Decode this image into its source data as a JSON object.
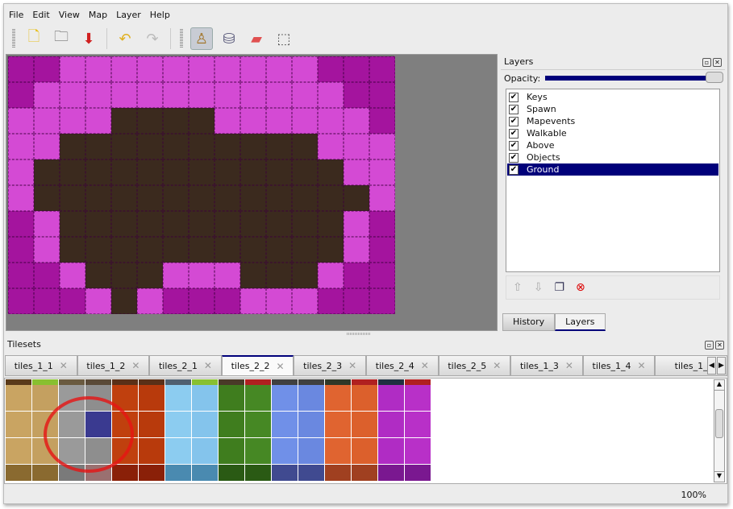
{
  "menu": [
    "File",
    "Edit",
    "View",
    "Map",
    "Layer",
    "Help"
  ],
  "toolbar": [
    {
      "icon": "new-file-icon",
      "glyph": "🗋"
    },
    {
      "icon": "open-folder-icon",
      "glyph": "🗀"
    },
    {
      "icon": "save-icon",
      "glyph": "⬇"
    },
    {
      "icon": "undo-icon",
      "glyph": "↶"
    },
    {
      "icon": "redo-icon",
      "glyph": "↷"
    },
    {
      "icon": "stamp-brush-icon",
      "glyph": "♙",
      "active": true
    },
    {
      "icon": "bucket-fill-icon",
      "glyph": "⛁"
    },
    {
      "icon": "eraser-icon",
      "glyph": "▰"
    },
    {
      "icon": "rect-select-icon",
      "glyph": "⬚"
    }
  ],
  "map": {
    "colors": {
      "D": "#a4149e",
      "L": "#d44ad4",
      "B": "#3b2a1e"
    },
    "rows": [
      "DDLLLLLLLLLLDDD",
      "DLLLLLLLLLLLLDD",
      "LLLLBBBBLLLLLLD",
      "LLBBBBBBBBBBLLL",
      "LBBBBBBBBBBBBLL",
      "LBBBBBBBBBBBBBL",
      "DLBBBBBBBBBBBLD",
      "DLBBBBBBBBBBBLD",
      "DDLBBBLLLBBBLDD",
      "DDDLBLDDDLLLDDD"
    ]
  },
  "layers_panel": {
    "title": "Layers",
    "opacity_label": "Opacity:",
    "opacity": 1.0,
    "layers": [
      {
        "name": "Keys",
        "visible": true
      },
      {
        "name": "Spawn",
        "visible": true
      },
      {
        "name": "Mapevents",
        "visible": true
      },
      {
        "name": "Walkable",
        "visible": true
      },
      {
        "name": "Above",
        "visible": true
      },
      {
        "name": "Objects",
        "visible": true
      },
      {
        "name": "Ground",
        "visible": true,
        "selected": true
      }
    ],
    "tabs": [
      "History",
      "Layers"
    ],
    "active_tab": "Layers"
  },
  "tilesets": {
    "title": "Tilesets",
    "tabs": [
      "tiles_1_1",
      "tiles_1_2",
      "tiles_2_1",
      "tiles_2_2",
      "tiles_2_3",
      "tiles_2_4",
      "tiles_2_5",
      "tiles_1_3",
      "tiles_1_4",
      "tiles_1_"
    ],
    "active_tab": "tiles_2_2",
    "strip_colors": [
      "#5a3a1a",
      "#88c030",
      "#6a5a40",
      "#5a4a38",
      "#5a3018",
      "#5a3018",
      "#506070",
      "#88c030",
      "#4a3a28",
      "#b02020",
      "#404040",
      "#404040",
      "#303828",
      "#b02020",
      "#203040",
      "#b02020"
    ],
    "column_colors": [
      "#c9a462",
      "#c4a060",
      "#9a9a9a",
      "#8e8e8e",
      "#c0400e",
      "#b83a0c",
      "#8cccf0",
      "#84c4ec",
      "#3f7d1e",
      "#468824",
      "#7090e8",
      "#6a88e0",
      "#e06430",
      "#dc602c",
      "#b02cc4",
      "#b830c8"
    ],
    "bottom_colors": [
      "#8a6a30",
      "#8a6a30",
      "#7a7a7a",
      "#9a7070",
      "#8a2008",
      "#8a2008",
      "#4a8ab0",
      "#4a8ab0",
      "#2a5a14",
      "#2a5a14",
      "#404a90",
      "#404a90",
      "#a04020",
      "#a04020",
      "#7a1890",
      "#7a1890"
    ],
    "selected_tile_color": "#3a3a90"
  },
  "status": {
    "zoom": "100%"
  }
}
